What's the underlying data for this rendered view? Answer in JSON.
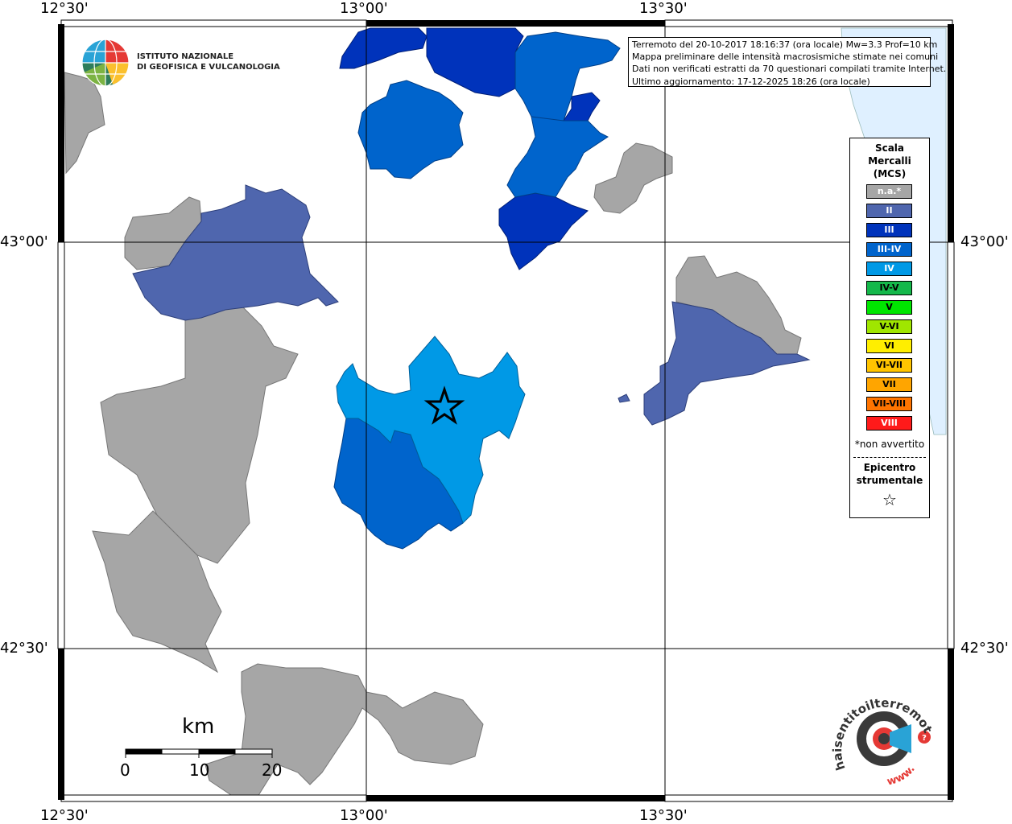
{
  "header": {
    "logo_name": "ingv-globe-logo",
    "institute_line1": "ISTITUTO NAZIONALE",
    "institute_line2": "DI GEOFISICA E VULCANOLOGIA"
  },
  "info": {
    "line1": "Terremoto del 20-10-2017 18:16:37 (ora locale) Mw=3.3 Prof=10 km",
    "line2": "Mappa preliminare delle intensità macrosismiche stimate nei comuni",
    "line3": "Dati non verificati estratti da 70 questionari compilati tramite Internet.",
    "line4": "Ultimo aggiornamento: 17-12-2025 18:26 (ora locale)"
  },
  "axes": {
    "top_lon": [
      "12°30'",
      "13°00'",
      "13°30'"
    ],
    "bottom_lon": [
      "12°30'",
      "13°00'",
      "13°30'"
    ],
    "left_lat": [
      "43°00'",
      "42°30'"
    ],
    "right_lat": [
      "43°00'",
      "42°30'"
    ]
  },
  "legend": {
    "title1": "Scala",
    "title2": "Mercalli",
    "title3": "(MCS)",
    "items": [
      {
        "label": "n.a.*",
        "color": "#a6a6a6",
        "text_color": "#ffffff"
      },
      {
        "label": "II",
        "color": "#4f66ae",
        "text_color": "#ffffff"
      },
      {
        "label": "III",
        "color": "#0033bb",
        "text_color": "#ffffff"
      },
      {
        "label": "III-IV",
        "color": "#0064cc",
        "text_color": "#ffffff"
      },
      {
        "label": "IV",
        "color": "#0099e6",
        "text_color": "#ffffff"
      },
      {
        "label": "IV-V",
        "color": "#14b84a",
        "text_color": "#000000"
      },
      {
        "label": "V",
        "color": "#00e600",
        "text_color": "#000000"
      },
      {
        "label": "V-VI",
        "color": "#a0e600",
        "text_color": "#000000"
      },
      {
        "label": "VI",
        "color": "#ffee00",
        "text_color": "#000000"
      },
      {
        "label": "VI-VII",
        "color": "#ffc400",
        "text_color": "#000000"
      },
      {
        "label": "VII",
        "color": "#ffa500",
        "text_color": "#000000"
      },
      {
        "label": "VII-VIII",
        "color": "#ff7400",
        "text_color": "#000000"
      },
      {
        "label": "VIII",
        "color": "#ff1a1a",
        "text_color": "#ffffff"
      }
    ],
    "note": "*non avvertito",
    "epicenter_line1": "Epicentro",
    "epicenter_line2": "strumentale",
    "epicenter_symbol": "☆"
  },
  "scale_bar": {
    "unit": "km",
    "ticks": [
      "0",
      "10",
      "20"
    ]
  },
  "footer_logo": {
    "text": "haisentitoilterremoto.it",
    "url_text": "www.",
    "icon": "earthquake-target-icon"
  },
  "colors": {
    "sea": "#dff0ff",
    "na": "#a6a6a6",
    "II": "#4f66ae",
    "III": "#0033bb",
    "III-IV": "#0064cc",
    "IV": "#0099e6"
  }
}
